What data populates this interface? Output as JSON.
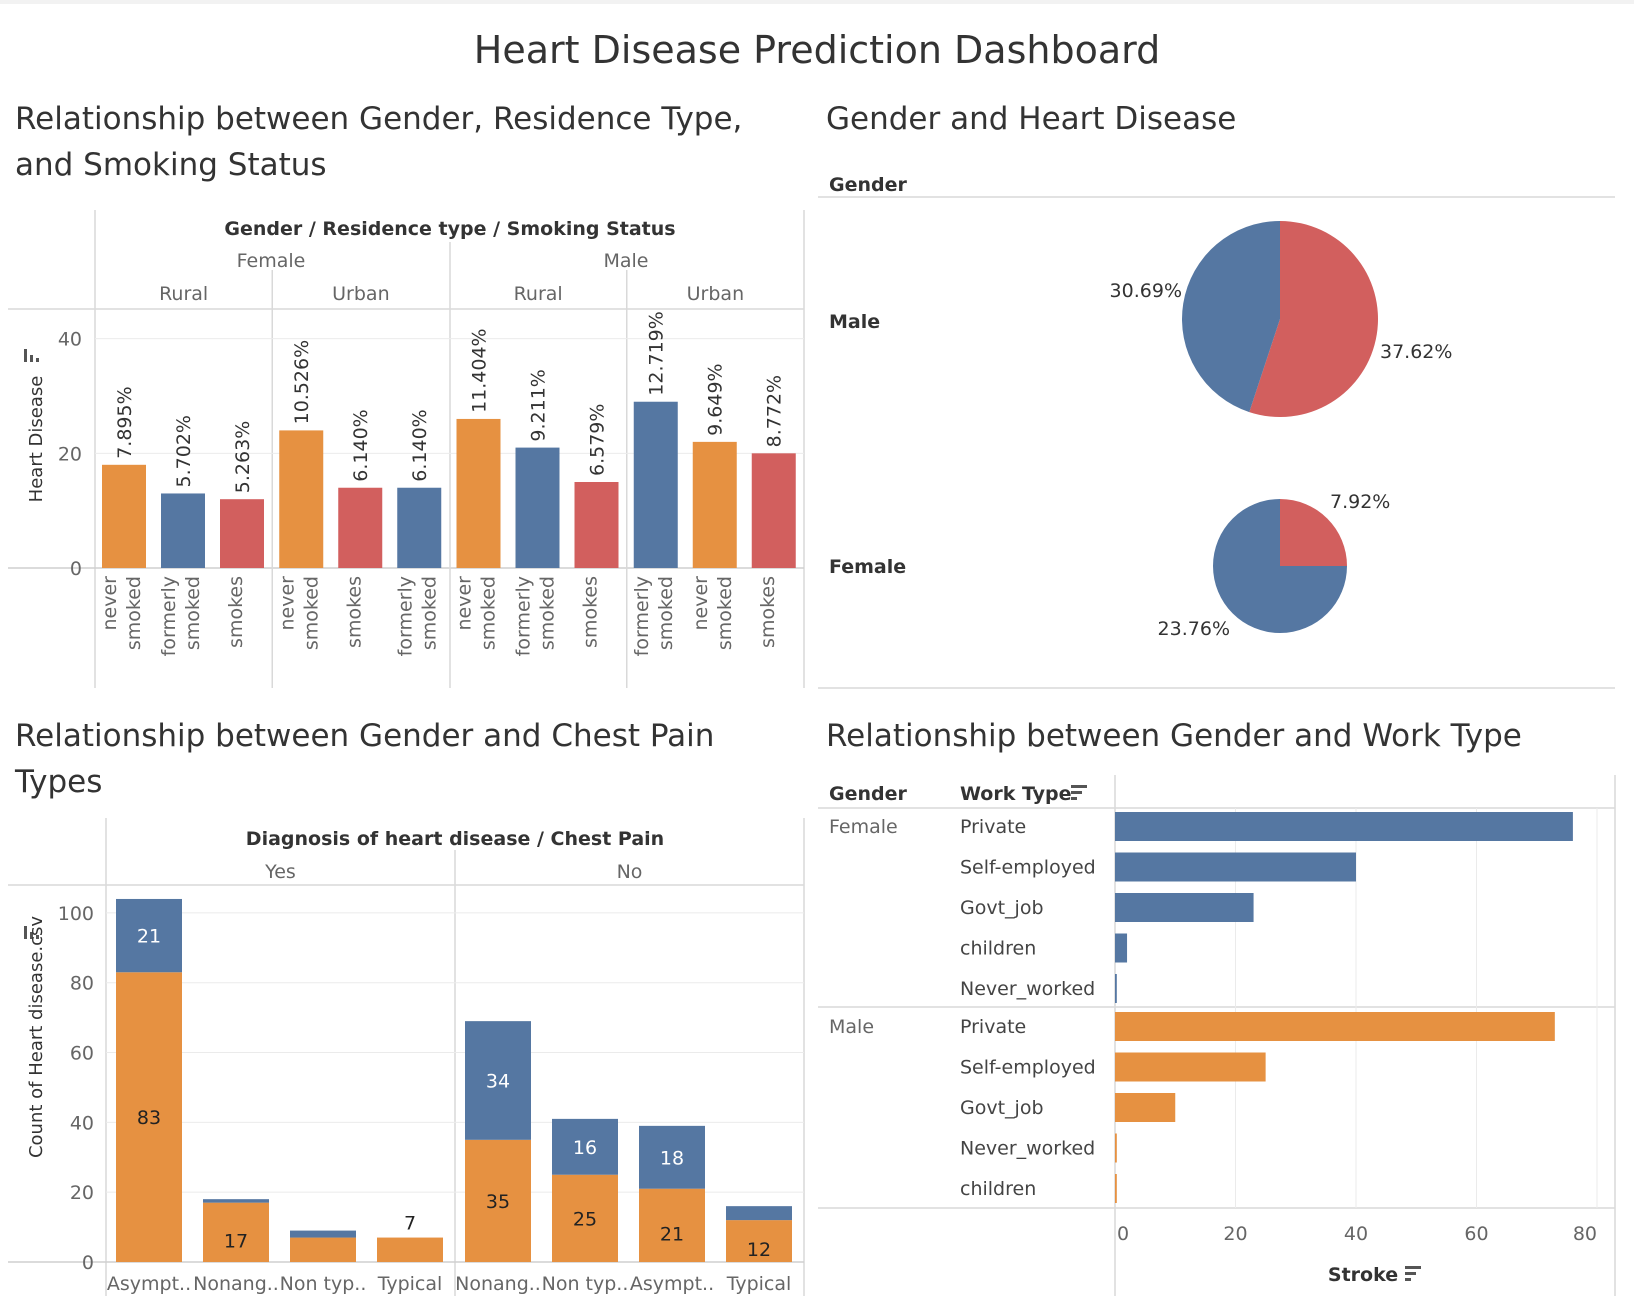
{
  "dashboard_title": "Heart Disease Prediction Dashboard",
  "colors": {
    "blue": "#5577a2",
    "orange": "#e69141",
    "red": "#d25f5e",
    "grid": "#ebebeb",
    "rule": "#d9d9d9"
  },
  "sections": {
    "residence": {
      "title_line1": "Relationship between Gender, Residence Type,",
      "title_line2": "and Smoking Status"
    },
    "gender_hd": {
      "title": "Gender and Heart Disease"
    },
    "chest": {
      "title_line1": "Relationship between Gender and Chest Pain",
      "title_line2": "Types"
    },
    "work": {
      "title": "Relationship between Gender and Work Type"
    }
  },
  "chart_data": [
    {
      "id": "residence",
      "type": "bar",
      "header": "Gender  /  Residence type  /  Smoking Status",
      "ylabel": "Heart Disease",
      "ylim": [
        0,
        45
      ],
      "yticks": [
        0,
        20,
        40
      ],
      "groups": [
        {
          "gender": "Female",
          "residence": "Rural",
          "bars": [
            {
              "category": "never smoked",
              "value": 18,
              "label": "7.895%",
              "color": "orange"
            },
            {
              "category": "formerly smoked",
              "value": 13,
              "label": "5.702%",
              "color": "blue"
            },
            {
              "category": "smokes",
              "value": 12,
              "label": "5.263%",
              "color": "red"
            }
          ]
        },
        {
          "gender": "Female",
          "residence": "Urban",
          "bars": [
            {
              "category": "never smoked",
              "value": 24,
              "label": "10.526%",
              "color": "orange"
            },
            {
              "category": "smokes",
              "value": 14,
              "label": "6.140%",
              "color": "red"
            },
            {
              "category": "formerly smoked",
              "value": 14,
              "label": "6.140%",
              "color": "blue"
            }
          ]
        },
        {
          "gender": "Male",
          "residence": "Rural",
          "bars": [
            {
              "category": "never smoked",
              "value": 26,
              "label": "11.404%",
              "color": "orange"
            },
            {
              "category": "formerly smoked",
              "value": 21,
              "label": "9.211%",
              "color": "blue"
            },
            {
              "category": "smokes",
              "value": 15,
              "label": "6.579%",
              "color": "red"
            }
          ]
        },
        {
          "gender": "Male",
          "residence": "Urban",
          "bars": [
            {
              "category": "formerly smoked",
              "value": 29,
              "label": "12.719%",
              "color": "blue"
            },
            {
              "category": "never smoked",
              "value": 22,
              "label": "9.649%",
              "color": "orange"
            },
            {
              "category": "smokes",
              "value": 20,
              "label": "8.772%",
              "color": "red"
            }
          ]
        }
      ]
    },
    {
      "id": "gender_hd",
      "type": "pie",
      "row_header": "Gender",
      "pies": [
        {
          "gender": "Male",
          "slices": [
            {
              "label": "37.62%",
              "value": 37.62,
              "color": "red"
            },
            {
              "label": "30.69%",
              "value": 30.69,
              "color": "blue"
            }
          ]
        },
        {
          "gender": "Female",
          "slices": [
            {
              "label": "7.92%",
              "value": 7.92,
              "color": "red"
            },
            {
              "label": "23.76%",
              "value": 23.76,
              "color": "blue"
            }
          ]
        }
      ]
    },
    {
      "id": "chest",
      "type": "bar",
      "stacked": true,
      "header": "Diagnosis of heart disease  /  Chest Pain",
      "ylabel": "Count of Heart disease.csv",
      "ylim": [
        0,
        108
      ],
      "yticks": [
        0,
        20,
        40,
        60,
        80,
        100
      ],
      "groups": [
        {
          "diagnosis": "Yes",
          "bars": [
            {
              "category": "Asympt..",
              "orange": 83,
              "blue": 21,
              "orange_label": "83",
              "blue_label": "21"
            },
            {
              "category": "Nonang..",
              "orange": 17,
              "blue": 1,
              "orange_label": "17",
              "blue_label": ""
            },
            {
              "category": "Non typ..",
              "orange": 7,
              "blue": 2,
              "orange_label": "",
              "blue_label": ""
            },
            {
              "category": "Typical",
              "orange": 7,
              "blue": 0,
              "orange_label": "",
              "blue_label": "",
              "top_label": "7"
            }
          ]
        },
        {
          "diagnosis": "No",
          "bars": [
            {
              "category": "Nonang..",
              "orange": 35,
              "blue": 34,
              "orange_label": "35",
              "blue_label": "34"
            },
            {
              "category": "Non typ..",
              "orange": 25,
              "blue": 16,
              "orange_label": "25",
              "blue_label": "16"
            },
            {
              "category": "Asympt..",
              "orange": 21,
              "blue": 18,
              "orange_label": "21",
              "blue_label": "18"
            },
            {
              "category": "Typical",
              "orange": 12,
              "blue": 4,
              "orange_label": "12",
              "blue_label": ""
            }
          ]
        }
      ]
    },
    {
      "id": "work",
      "type": "bar",
      "orientation": "horizontal",
      "col_gender": "Gender",
      "col_work": "Work Type",
      "xlabel": "Stroke",
      "xlim": [
        0,
        80
      ],
      "xticks": [
        0,
        20,
        40,
        60,
        80
      ],
      "groups": [
        {
          "gender": "Female",
          "color": "blue",
          "bars": [
            {
              "category": "Private",
              "value": 76
            },
            {
              "category": "Self-employed",
              "value": 40
            },
            {
              "category": "Govt_job",
              "value": 23
            },
            {
              "category": "children",
              "value": 2
            },
            {
              "category": "Never_worked",
              "value": 0.3
            }
          ]
        },
        {
          "gender": "Male",
          "color": "orange",
          "bars": [
            {
              "category": "Private",
              "value": 73
            },
            {
              "category": "Self-employed",
              "value": 25
            },
            {
              "category": "Govt_job",
              "value": 10
            },
            {
              "category": "Never_worked",
              "value": 0.3
            },
            {
              "category": "children",
              "value": 0.3
            }
          ]
        }
      ]
    }
  ]
}
